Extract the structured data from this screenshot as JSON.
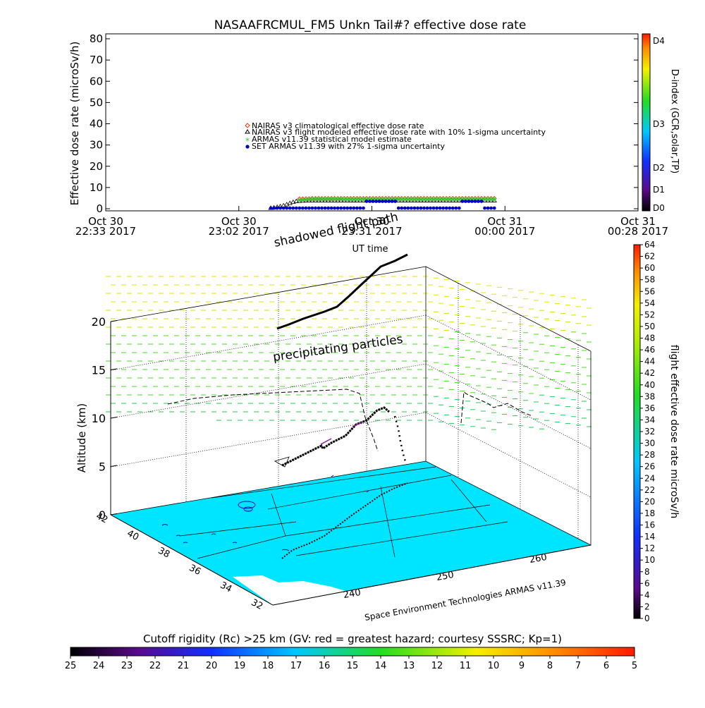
{
  "chart_data": [
    {
      "type": "scatter",
      "title": "NASAAFRCMUL_FM5 Unkn Tail#? effective dose rate",
      "ylabel": "Effective dose rate (microSv/h)",
      "xlabel": "UT time",
      "ylim": [
        0,
        80
      ],
      "yticks": [
        0,
        10,
        20,
        30,
        40,
        50,
        60,
        70,
        80
      ],
      "x_ticks": [
        {
          "date": "Oct 30",
          "time": "22:33 2017"
        },
        {
          "date": "Oct 30",
          "time": "23:02 2017"
        },
        {
          "date": "Oct 30",
          "time": "23:31 2017"
        },
        {
          "date": "Oct 31",
          "time": "00:00 2017"
        },
        {
          "date": "Oct 31",
          "time": "00:28 2017"
        }
      ],
      "legend_position": "center",
      "series": [
        {
          "name": "NAIRAS v3 climatological effective dose rate",
          "marker": "diamond",
          "color": "#ff3300",
          "x": [
            57,
            60,
            63,
            66,
            69,
            72,
            75,
            78,
            81,
            84,
            87,
            90,
            93,
            96,
            99,
            102,
            105,
            108,
            111,
            114,
            117,
            120,
            123,
            126,
            129,
            132,
            135,
            138,
            141,
            144,
            147,
            150,
            153,
            156,
            159,
            162,
            165,
            168,
            171,
            174,
            177,
            180,
            183,
            186,
            189,
            192,
            195,
            198,
            201,
            204,
            207,
            210,
            213,
            216,
            219,
            222,
            225,
            228,
            231,
            234,
            237,
            240
          ],
          "y": [
            4.6,
            4.6,
            4.7,
            4.7,
            4.8,
            4.8,
            4.8,
            4.8,
            4.8,
            4.8,
            4.8,
            4.8,
            4.8,
            4.8,
            4.8,
            4.8,
            4.8,
            4.8,
            4.8,
            4.8,
            4.8,
            4.8,
            4.8,
            4.8,
            4.8,
            4.8,
            4.8,
            4.8,
            4.8,
            4.8,
            4.8,
            4.8,
            4.8,
            4.8,
            4.8,
            4.8,
            4.8,
            4.8,
            4.8,
            4.8,
            4.8,
            4.8,
            4.8,
            4.8,
            4.8,
            4.8,
            4.8,
            4.8,
            4.8,
            4.8,
            4.8,
            4.8,
            4.8,
            4.8,
            4.8,
            4.8,
            4.8,
            4.8,
            4.8,
            4.8,
            4.8,
            4.8
          ]
        },
        {
          "name": "NAIRAS v3 flight modeled effective dose rate with 10% 1-sigma uncertainty",
          "marker": "triangle",
          "color": "#000000",
          "x": [
            30,
            33,
            36,
            39,
            42,
            45,
            48,
            51,
            54,
            57,
            60,
            63,
            66,
            69,
            72,
            75,
            78,
            81,
            84,
            87,
            90,
            93,
            96,
            99,
            102,
            105,
            108,
            111,
            114,
            117,
            120,
            123,
            126,
            129,
            132,
            135,
            138,
            141,
            144,
            147,
            150,
            153,
            156,
            159,
            162,
            165,
            168,
            171,
            174,
            177,
            180,
            183,
            186,
            189,
            192,
            195,
            198,
            201,
            204,
            207,
            210,
            213,
            216,
            219,
            222,
            225,
            228,
            231,
            234,
            237,
            240
          ],
          "y": [
            0.3,
            0.5,
            0.8,
            1.1,
            1.5,
            2.0,
            2.6,
            3.1,
            3.5,
            3.6,
            3.7,
            3.8,
            3.8,
            3.8,
            3.8,
            3.8,
            3.8,
            3.8,
            3.8,
            3.8,
            3.8,
            3.8,
            3.8,
            3.8,
            3.8,
            3.8,
            3.8,
            3.8,
            3.8,
            3.8,
            3.8,
            3.8,
            3.8,
            3.8,
            3.8,
            3.8,
            3.8,
            3.8,
            3.8,
            3.8,
            3.8,
            3.8,
            3.8,
            3.8,
            3.8,
            3.8,
            3.8,
            3.8,
            3.8,
            3.8,
            3.8,
            3.8,
            3.8,
            3.8,
            3.8,
            3.8,
            3.8,
            3.8,
            3.8,
            3.8,
            3.8,
            3.8,
            3.8,
            3.8,
            3.8,
            3.8,
            3.8,
            3.8,
            3.8,
            3.8,
            3.8
          ]
        },
        {
          "name": "ARMAS v11.39 statistical model estimate",
          "marker": "asterisk",
          "color": "#33cc33",
          "x": [
            57,
            60,
            63,
            66,
            69,
            72,
            75,
            78,
            81,
            84,
            87,
            90,
            93,
            96,
            99,
            102,
            105,
            108,
            111,
            114,
            117,
            120,
            123,
            126,
            129,
            132,
            135,
            138,
            141,
            144,
            147,
            150,
            153,
            156,
            159,
            162,
            165,
            168,
            171,
            174,
            177,
            180,
            183,
            186,
            189,
            192,
            195,
            198,
            201,
            204,
            207,
            210,
            213,
            216,
            219,
            222,
            225,
            228,
            231,
            234,
            237,
            240
          ],
          "y": [
            4.2,
            4.3,
            4.4,
            4.5,
            4.6,
            4.6,
            4.6,
            4.6,
            4.6,
            4.6,
            4.6,
            4.6,
            4.6,
            4.6,
            4.5,
            4.5,
            4.5,
            4.5,
            4.5,
            4.5,
            4.5,
            4.5,
            4.5,
            4.5,
            4.5,
            4.5,
            4.5,
            4.5,
            4.5,
            4.5,
            4.5,
            4.5,
            4.5,
            4.5,
            4.5,
            4.5,
            4.5,
            4.5,
            4.5,
            4.5,
            4.5,
            4.5,
            4.5,
            4.5,
            4.5,
            4.5,
            4.5,
            4.5,
            4.5,
            4.5,
            4.5,
            4.5,
            4.5,
            4.5,
            4.5,
            4.5,
            4.5,
            4.5,
            4.5,
            4.5,
            4.5,
            4.5
          ]
        },
        {
          "name": "SET ARMAS v11.39 with 27% 1-sigma uncertainty",
          "marker": "circle",
          "color": "#0000cc",
          "x": [
            30,
            33,
            36,
            39,
            42,
            45,
            48,
            51,
            54,
            57,
            60,
            63,
            66,
            69,
            72,
            75,
            78,
            81,
            84,
            87,
            90,
            93,
            96,
            99,
            102,
            105,
            108,
            111,
            114,
            117,
            120,
            123,
            126,
            129,
            132,
            135,
            138,
            141,
            144,
            147,
            150,
            153,
            156,
            159,
            162,
            165,
            168,
            171,
            174,
            177,
            180,
            183,
            186,
            189,
            192,
            195,
            198,
            201,
            204,
            207,
            210,
            213,
            216,
            219,
            222,
            225,
            228,
            231,
            234,
            237,
            240
          ],
          "y": [
            0.3,
            0.3,
            0.3,
            0.3,
            0.3,
            0.3,
            0.3,
            0.3,
            0.3,
            0.3,
            0.3,
            0.3,
            0.3,
            0.3,
            0.3,
            0.3,
            0.3,
            0.3,
            0.3,
            0.3,
            0.3,
            0.3,
            0.3,
            0.3,
            0.3,
            0.3,
            0.3,
            0.3,
            0.3,
            0.3,
            3.5,
            3.5,
            3.5,
            3.5,
            3.5,
            3.5,
            3.5,
            3.5,
            3.5,
            3.5,
            0.3,
            0.3,
            0.3,
            0.3,
            0.3,
            0.3,
            0.3,
            0.3,
            0.3,
            0.3,
            0.3,
            0.3,
            0.3,
            0.3,
            0.3,
            0.3,
            0.3,
            0.3,
            0.3,
            0.3,
            3.5,
            3.5,
            3.5,
            3.5,
            3.5,
            3.5,
            3.5,
            0.3,
            0.3,
            0.3,
            0.3
          ]
        }
      ],
      "colorbar": {
        "label": "D-index (GCR,solar,TP)",
        "levels": [
          "D0",
          "D1",
          "D2",
          "D3",
          "D4"
        ]
      }
    },
    {
      "type": "scatter",
      "ylabel": "Altitude (km)",
      "zticks": [
        0,
        5,
        10,
        15,
        20
      ],
      "lat_ticks": [
        42,
        40,
        38,
        36,
        34,
        32
      ],
      "lon_ticks": [
        240,
        250,
        260
      ],
      "annotations": [
        "shadowed flight path",
        "precipitating particles"
      ],
      "footer": "Space Environment Technologies ARMAS v11.39",
      "colorbar": {
        "label": "flight effective dose rate microSv/h",
        "ticks": [
          0,
          2,
          4,
          6,
          8,
          10,
          12,
          14,
          16,
          18,
          20,
          22,
          24,
          26,
          28,
          30,
          32,
          34,
          36,
          38,
          40,
          42,
          44,
          46,
          48,
          50,
          52,
          54,
          56,
          58,
          60,
          62,
          64
        ]
      },
      "colors": {
        "map": "#00e5ff",
        "coast": "#0000cc",
        "track": "#000000"
      }
    },
    {
      "type": "heatmap",
      "title": "Cutoff rigidity (Rc) >25 km (GV: red = greatest hazard; courtesy SSSRC; Kp=1)",
      "ticks": [
        25,
        24,
        23,
        22,
        21,
        20,
        19,
        18,
        17,
        16,
        15,
        14,
        13,
        12,
        11,
        10,
        9,
        8,
        7,
        6,
        5
      ]
    }
  ]
}
